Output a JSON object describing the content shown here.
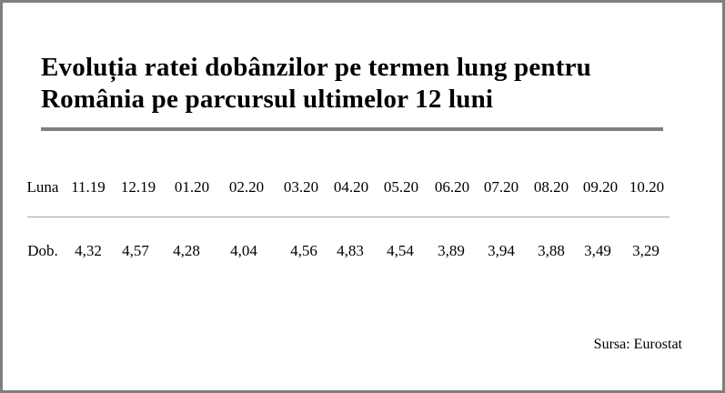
{
  "title_lines": [
    "Evoluția ratei dobânzilor pe termen lung pentru",
    "România pe parcursul ultimelor 12 luni"
  ],
  "table": {
    "header": [
      "Luna",
      "11.19",
      "12.19",
      "01.20",
      "02.20",
      "03.20",
      "04.20",
      "05.20",
      "06.20",
      "07.20",
      "08.20",
      "09.20",
      "10.20"
    ],
    "rows": [
      [
        "Dob.",
        "4,32",
        "4,57",
        "4,28",
        "4,04",
        "4,56",
        "4,83",
        "4,54",
        "3,89",
        "3,94",
        "3,88",
        "3,49",
        "3,29"
      ]
    ]
  },
  "source": "Sursa: Eurostat"
}
